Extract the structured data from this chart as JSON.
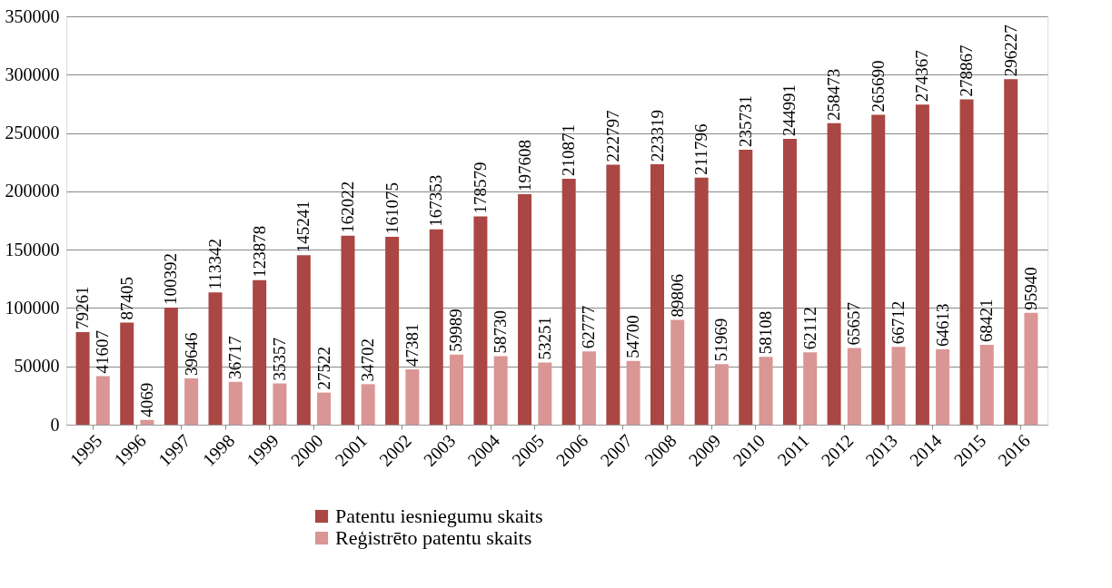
{
  "chart_data": {
    "type": "bar",
    "categories": [
      "1995",
      "1996",
      "1997",
      "1998",
      "1999",
      "2000",
      "2001",
      "2002",
      "2003",
      "2004",
      "2005",
      "2006",
      "2007",
      "2008",
      "2009",
      "2010",
      "2011",
      "2012",
      "2013",
      "2014",
      "2015",
      "2016"
    ],
    "series": [
      {
        "name": "Patentu iesniegumu skaits",
        "color": "#aa4643",
        "values": [
          79261,
          87405,
          100392,
          113342,
          123878,
          145241,
          162022,
          161075,
          167353,
          178579,
          197608,
          210871,
          222797,
          223319,
          211796,
          235731,
          244991,
          258473,
          265690,
          274367,
          278867,
          296227
        ]
      },
      {
        "name": "Reģistrēto patentu skaits",
        "color": "#d99694",
        "values": [
          41607,
          4069,
          39646,
          36717,
          35357,
          27522,
          34702,
          47381,
          59989,
          58730,
          53251,
          62777,
          54700,
          89806,
          51969,
          58108,
          62112,
          65657,
          66712,
          64613,
          68421,
          95940
        ]
      }
    ],
    "ylim": [
      0,
      350000
    ],
    "yticks": [
      0,
      50000,
      100000,
      150000,
      200000,
      250000,
      300000,
      350000
    ],
    "grid": "y",
    "legend": "bottom",
    "data_labels": true
  }
}
